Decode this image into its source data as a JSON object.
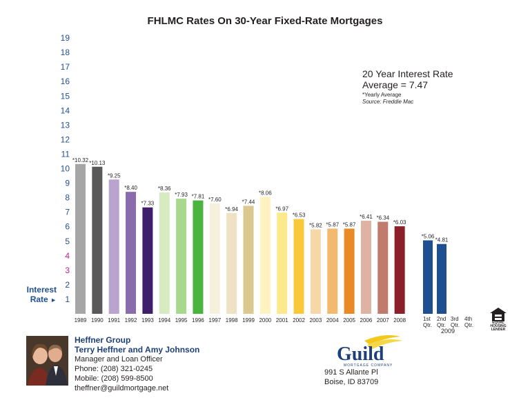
{
  "chart_data": {
    "type": "bar",
    "title": "FHLMC Rates On 30-Year Fixed-Rate Mortgages",
    "y_ticks": [
      "1",
      "2",
      "3",
      "4",
      "5",
      "6",
      "7",
      "8",
      "9",
      "10",
      "11",
      "12",
      "13",
      "14",
      "15",
      "16",
      "17",
      "18",
      "19"
    ],
    "ylim": [
      0,
      19
    ],
    "ylabel": "Interest Rate",
    "categories": [
      "1989",
      "1990",
      "1991",
      "1992",
      "1993",
      "1994",
      "1995",
      "1996",
      "1997",
      "1998",
      "1999",
      "2000",
      "2001",
      "2002",
      "2003",
      "2004",
      "2005",
      "2006",
      "2007",
      "2008",
      "1st Qtr.",
      "2nd Qtr.",
      "3rd Qtr.",
      "4th Qtr."
    ],
    "values": [
      10.32,
      10.13,
      9.25,
      8.4,
      7.33,
      8.36,
      7.93,
      7.81,
      7.6,
      6.94,
      7.44,
      8.06,
      6.97,
      6.53,
      5.82,
      5.87,
      5.87,
      6.41,
      6.34,
      6.03,
      5.06,
      4.81,
      null,
      null
    ],
    "data_labels": [
      "*10.32",
      "*10.13",
      "*9.25",
      "*8.40",
      "*7.33",
      "*8.36",
      "*7.93",
      "*7.81",
      "*7.60",
      "*6.94",
      "*7.44",
      "*8.06",
      "*6.97",
      "*6.53",
      "*5.82",
      "*5.87",
      "*5.87",
      "*6.41",
      "*6.34",
      "*6.03",
      "*5.06",
      "*4.81",
      "",
      ""
    ],
    "colors": [
      "#a6a6a6",
      "#595959",
      "#b9a3cf",
      "#8a6bab",
      "#3f1f6b",
      "#d6ecc0",
      "#a8d88c",
      "#4ab43f",
      "#f5f0db",
      "#ede3c4",
      "#d9c98f",
      "#fdf3c0",
      "#fce98c",
      "#f9c93b",
      "#f6d8a8",
      "#f3b96e",
      "#ea8a27",
      "#deb3a4",
      "#c07b6d",
      "#8b1f2a",
      "#1d4f91",
      "#1d4f91",
      "",
      ""
    ],
    "tick_colors": [
      "#1f4f93",
      "#1f4f93",
      "#c2228e",
      "#c2228e",
      "#1f4f93",
      "#1f4f93",
      "#1f4f93",
      "#1f4f93",
      "#1f4f93",
      "#1f4f93",
      "#1f4f93",
      "#1f4f93",
      "#1f4f93",
      "#1f4f93",
      "#1f4f93",
      "#1f4f93",
      "#1f4f93",
      "#1f4f93",
      "#1f4f93"
    ],
    "group_label": "2009",
    "annotation": {
      "heading_line1": "20 Year Interest Rate",
      "heading_line2": "Average = 7.47",
      "footnote": "*Yearly Average",
      "source": "Source: Freddie Mac"
    }
  },
  "axis_label_top": "Interest",
  "axis_label_bottom": "Rate",
  "arrow_glyph": "►",
  "eho_text": "EQUAL HOUSING LENDER",
  "contact": {
    "group": "Heffner Group",
    "names": "Terry Heffner and Amy Johnson",
    "role": "Manager  and  Loan Officer",
    "phone": "Phone: (208) 321-0245",
    "mobile": "Mobile: (208) 599-8500",
    "email": "theffner@guildmortgage.net"
  },
  "logo": {
    "name": "Guild",
    "sub": "MORTGAGE COMPANY"
  },
  "address": {
    "line1": "991 S Allante Pl",
    "line2": "Boise, ID 83709"
  }
}
